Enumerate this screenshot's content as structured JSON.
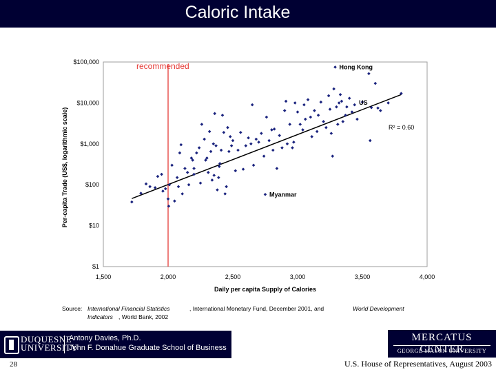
{
  "slide": {
    "title": "Caloric Intake",
    "source_prefix": "Source:",
    "source_parts": [
      "International Financial Statistics",
      ", International Monetary Fund, December 2001, and",
      "World Development",
      "Indicators",
      ", World Bank, 2002"
    ],
    "slide_number": "28",
    "footer_right": "U.S. House of Representatives, August 2003",
    "logo_left": {
      "name_line1": "DUQUESNE",
      "name_line2": "UNIVERSITY",
      "person": "Antony Davies, Ph.D.",
      "school": "John F. Donahue Graduate School of Business"
    },
    "logo_right": {
      "line1": "MERCATUS CENTER",
      "line2": "GEORGE MASON UNIVERSITY"
    }
  },
  "colors": {
    "title_bar": "#000033",
    "points": "#1a237e",
    "reference_line": "#e53935",
    "trend_line": "#000000"
  },
  "chart_data": {
    "type": "scatter",
    "xlabel": "Daily per capita Supply of Calories",
    "ylabel": "Per-capita Trade (US$, logarithmic scale)",
    "xlim": [
      1500,
      4000
    ],
    "ylim": [
      1,
      100000
    ],
    "y_scale": "log",
    "x_ticks": [
      1500,
      2000,
      2500,
      3000,
      3500,
      4000
    ],
    "x_tick_labels": [
      "1,500",
      "2,000",
      "2,500",
      "3,000",
      "3,500",
      "4,000"
    ],
    "y_ticks": [
      1,
      10,
      100,
      1000,
      10000,
      100000
    ],
    "y_tick_labels": [
      "$1",
      "$10",
      "$100",
      "$1,000",
      "$10,000",
      "$100,000"
    ],
    "grid": false,
    "reference_line": {
      "x": 2000,
      "label": "recommended"
    },
    "trend": {
      "r2_label": "R² = 0.60",
      "x": [
        1720,
        3800
      ],
      "y": [
        46,
        16000
      ]
    },
    "annotations": [
      {
        "label": "Hong Kong",
        "x": 3290,
        "y": 75000
      },
      {
        "label": "US",
        "x": 3570,
        "y": 7700
      },
      {
        "label": "Myanmar",
        "x": 2750,
        "y": 58
      }
    ],
    "points": [
      [
        1720,
        38
      ],
      [
        1790,
        62
      ],
      [
        1830,
        105
      ],
      [
        1860,
        90
      ],
      [
        1900,
        85
      ],
      [
        1920,
        160
      ],
      [
        1950,
        180
      ],
      [
        1960,
        70
      ],
      [
        1980,
        80
      ],
      [
        2000,
        45
      ],
      [
        2005,
        30
      ],
      [
        2010,
        100
      ],
      [
        2030,
        300
      ],
      [
        2050,
        40
      ],
      [
        2070,
        150
      ],
      [
        2080,
        90
      ],
      [
        2090,
        600
      ],
      [
        2100,
        950
      ],
      [
        2110,
        60
      ],
      [
        2130,
        250
      ],
      [
        2150,
        200
      ],
      [
        2160,
        100
      ],
      [
        2180,
        450
      ],
      [
        2190,
        400
      ],
      [
        2200,
        250
      ],
      [
        2200,
        180
      ],
      [
        2220,
        600
      ],
      [
        2240,
        800
      ],
      [
        2250,
        110
      ],
      [
        2260,
        3000
      ],
      [
        2280,
        1300
      ],
      [
        2290,
        400
      ],
      [
        2300,
        450
      ],
      [
        2310,
        200
      ],
      [
        2320,
        2000
      ],
      [
        2330,
        650
      ],
      [
        2340,
        130
      ],
      [
        2350,
        1000
      ],
      [
        2355,
        170
      ],
      [
        2360,
        5500
      ],
      [
        2370,
        900
      ],
      [
        2380,
        75
      ],
      [
        2390,
        150
      ],
      [
        2395,
        280
      ],
      [
        2400,
        330
      ],
      [
        2410,
        700
      ],
      [
        2420,
        5000
      ],
      [
        2430,
        1900
      ],
      [
        2440,
        60
      ],
      [
        2450,
        90
      ],
      [
        2460,
        2500
      ],
      [
        2470,
        650
      ],
      [
        2480,
        1500
      ],
      [
        2490,
        900
      ],
      [
        2500,
        1200
      ],
      [
        2520,
        220
      ],
      [
        2540,
        700
      ],
      [
        2560,
        1900
      ],
      [
        2580,
        240
      ],
      [
        2600,
        900
      ],
      [
        2620,
        1400
      ],
      [
        2640,
        1000
      ],
      [
        2650,
        9000
      ],
      [
        2660,
        300
      ],
      [
        2680,
        1300
      ],
      [
        2700,
        1100
      ],
      [
        2720,
        1800
      ],
      [
        2740,
        500
      ],
      [
        2750,
        58
      ],
      [
        2760,
        4500
      ],
      [
        2780,
        1200
      ],
      [
        2800,
        2200
      ],
      [
        2810,
        700
      ],
      [
        2820,
        2300
      ],
      [
        2840,
        250
      ],
      [
        2860,
        1600
      ],
      [
        2880,
        800
      ],
      [
        2900,
        6500
      ],
      [
        2910,
        11000
      ],
      [
        2920,
        1000
      ],
      [
        2940,
        3000
      ],
      [
        2960,
        800
      ],
      [
        2970,
        1100
      ],
      [
        2980,
        10000
      ],
      [
        3000,
        6000
      ],
      [
        3020,
        3000
      ],
      [
        3040,
        2200
      ],
      [
        3050,
        9000
      ],
      [
        3060,
        4000
      ],
      [
        3080,
        12000
      ],
      [
        3100,
        4500
      ],
      [
        3110,
        1500
      ],
      [
        3130,
        6500
      ],
      [
        3150,
        2000
      ],
      [
        3160,
        5000
      ],
      [
        3180,
        10500
      ],
      [
        3200,
        3500
      ],
      [
        3220,
        2500
      ],
      [
        3240,
        15000
      ],
      [
        3250,
        7000
      ],
      [
        3260,
        1800
      ],
      [
        3270,
        500
      ],
      [
        3280,
        22000
      ],
      [
        3290,
        75000
      ],
      [
        3300,
        8000
      ],
      [
        3310,
        3000
      ],
      [
        3320,
        10000
      ],
      [
        3330,
        16000
      ],
      [
        3340,
        11000
      ],
      [
        3350,
        3500
      ],
      [
        3370,
        5000
      ],
      [
        3380,
        8000
      ],
      [
        3400,
        13000
      ],
      [
        3420,
        6000
      ],
      [
        3440,
        9000
      ],
      [
        3460,
        4000
      ],
      [
        3500,
        10500
      ],
      [
        3550,
        52000
      ],
      [
        3560,
        1200
      ],
      [
        3570,
        7700
      ],
      [
        3600,
        30000
      ],
      [
        3620,
        7500
      ],
      [
        3640,
        6500
      ],
      [
        3700,
        10000
      ],
      [
        3800,
        17000
      ]
    ]
  }
}
